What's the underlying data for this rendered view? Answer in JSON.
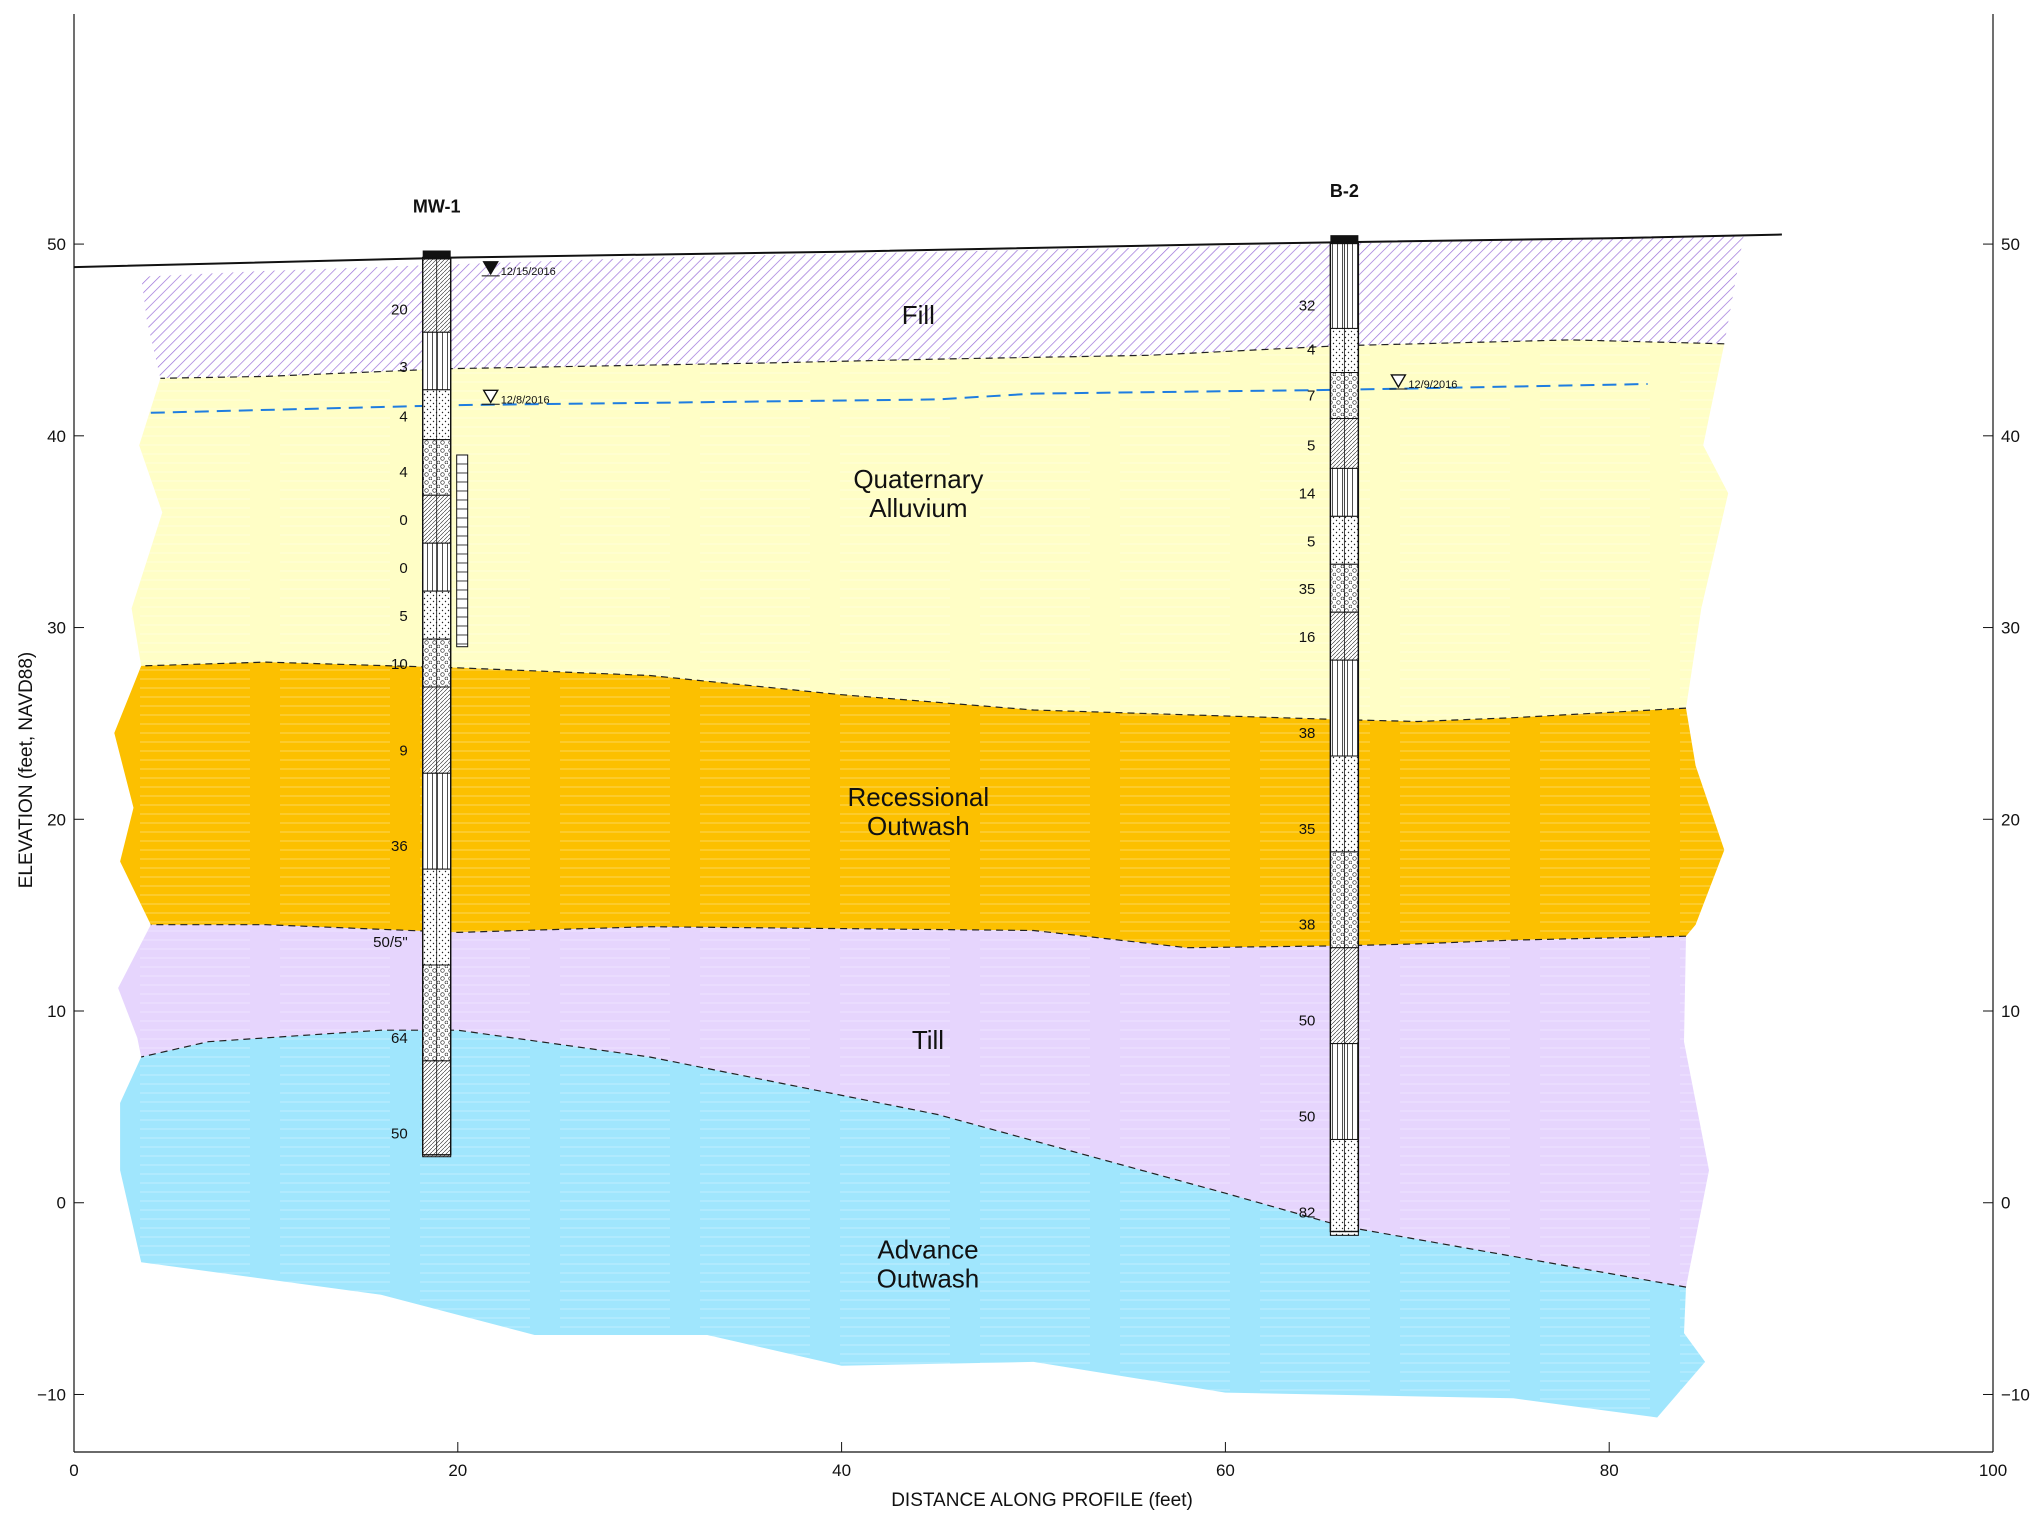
{
  "figure": {
    "x_axis_title": "DISTANCE ALONG PROFILE (feet)",
    "y_axis_title": "ELEVATION (feet, NAVD88)"
  },
  "chart_data": {
    "type": "geologic-cross-section",
    "xlabel": "DISTANCE ALONG PROFILE (feet)",
    "ylabel": "ELEVATION (feet, NAVD88)",
    "xlim": [
      0,
      100
    ],
    "ylim": [
      -13,
      62
    ],
    "xticks": [
      0,
      20,
      40,
      60,
      80,
      100
    ],
    "yticks": [
      -10,
      0,
      10,
      20,
      30,
      40,
      50
    ],
    "ground_surface": [
      [
        0,
        48.8
      ],
      [
        20,
        49.3
      ],
      [
        40,
        49.6
      ],
      [
        60,
        50.0
      ],
      [
        66,
        50.1
      ],
      [
        80,
        50.3
      ],
      [
        89,
        50.5
      ]
    ],
    "units": [
      {
        "name": "Fill",
        "label_lines": [
          "Fill"
        ],
        "label_at": [
          44,
          46.3
        ],
        "color": "#ffffff",
        "hatch_color": "#9a70d8",
        "top": [
          [
            3.5,
            48.3
          ],
          [
            10,
            48.6
          ],
          [
            30,
            49.3
          ],
          [
            60,
            49.9
          ],
          [
            80,
            50.3
          ],
          [
            87,
            50.4
          ]
        ],
        "bottom": [
          [
            86,
            44.8
          ],
          [
            78,
            45.0
          ],
          [
            70,
            44.8
          ],
          [
            66,
            44.7
          ],
          [
            56,
            44.2
          ],
          [
            45,
            44.0
          ],
          [
            36,
            43.8
          ],
          [
            25,
            43.6
          ],
          [
            19.5,
            43.5
          ],
          [
            10,
            43.1
          ],
          [
            4.5,
            43.0
          ]
        ],
        "left_edge": [
          [
            3.5,
            48.3
          ],
          [
            3.8,
            46.0
          ],
          [
            4.5,
            43.0
          ]
        ],
        "right_edge": [
          [
            87,
            50.4
          ],
          [
            86,
            44.8
          ]
        ]
      },
      {
        "name": "Quaternary Alluvium",
        "label_lines": [
          "Quaternary",
          "Alluvium"
        ],
        "label_at": [
          44,
          37.0
        ],
        "color": "#fffec6",
        "top": [
          [
            4.5,
            43.0
          ],
          [
            10,
            43.1
          ],
          [
            19.5,
            43.5
          ],
          [
            25,
            43.6
          ],
          [
            36,
            43.8
          ],
          [
            45,
            44.0
          ],
          [
            56,
            44.2
          ],
          [
            66,
            44.7
          ],
          [
            70,
            44.8
          ],
          [
            78,
            45.0
          ],
          [
            86,
            44.8
          ]
        ],
        "bottom": [
          [
            84,
            25.8
          ],
          [
            75,
            25.3
          ],
          [
            70,
            25.1
          ],
          [
            66,
            25.2
          ],
          [
            50,
            25.7
          ],
          [
            40,
            26.5
          ],
          [
            30,
            27.5
          ],
          [
            20,
            27.9
          ],
          [
            10,
            28.2
          ],
          [
            3.5,
            28.0
          ]
        ],
        "left_edge": [
          [
            4.5,
            43.0
          ],
          [
            3.4,
            39.5
          ],
          [
            4.6,
            36.0
          ],
          [
            3.0,
            31.0
          ],
          [
            3.5,
            28.0
          ]
        ],
        "right_edge": [
          [
            86,
            44.8
          ],
          [
            84.9,
            39.5
          ],
          [
            86.2,
            37.0
          ],
          [
            84.8,
            31.0
          ],
          [
            84,
            25.8
          ]
        ]
      },
      {
        "name": "Recessional Outwash",
        "label_lines": [
          "Recessional",
          "Outwash"
        ],
        "label_at": [
          44,
          20.4
        ],
        "color": "#fcc000",
        "top": [
          [
            3.5,
            28.0
          ],
          [
            10,
            28.2
          ],
          [
            20,
            27.9
          ],
          [
            30,
            27.5
          ],
          [
            40,
            26.5
          ],
          [
            50,
            25.7
          ],
          [
            66,
            25.2
          ],
          [
            70,
            25.1
          ],
          [
            75,
            25.3
          ],
          [
            84,
            25.8
          ]
        ],
        "bottom": [
          [
            84,
            13.9
          ],
          [
            75,
            13.7
          ],
          [
            70,
            13.5
          ],
          [
            66,
            13.4
          ],
          [
            58,
            13.3
          ],
          [
            50,
            14.2
          ],
          [
            30,
            14.4
          ],
          [
            20,
            14.1
          ],
          [
            10,
            14.5
          ],
          [
            4,
            14.5
          ]
        ],
        "left_edge": [
          [
            3.5,
            28.0
          ],
          [
            2.1,
            24.5
          ],
          [
            3.1,
            20.6
          ],
          [
            2.4,
            17.8
          ],
          [
            4,
            14.5
          ]
        ],
        "right_edge": [
          [
            84,
            25.8
          ],
          [
            84.5,
            22.8
          ],
          [
            86,
            18.4
          ],
          [
            84.5,
            14.5
          ],
          [
            84,
            13.9
          ]
        ]
      },
      {
        "name": "Till",
        "label_lines": [
          "Till"
        ],
        "label_at": [
          44.5,
          8.5
        ],
        "color": "#e6d5fd",
        "top": [
          [
            4,
            14.5
          ],
          [
            10,
            14.5
          ],
          [
            20,
            14.1
          ],
          [
            30,
            14.4
          ],
          [
            50,
            14.2
          ],
          [
            58,
            13.3
          ],
          [
            66,
            13.4
          ],
          [
            70,
            13.5
          ],
          [
            75,
            13.7
          ],
          [
            84,
            13.9
          ]
        ],
        "bottom": [
          [
            84,
            -4.4
          ],
          [
            75,
            -2.8
          ],
          [
            66,
            -1.2
          ],
          [
            60,
            0.5
          ],
          [
            45,
            4.6
          ],
          [
            30,
            7.6
          ],
          [
            20,
            9.0
          ],
          [
            16,
            9.0
          ],
          [
            7,
            8.4
          ],
          [
            3.5,
            7.6
          ]
        ],
        "left_edge": [
          [
            4,
            14.5
          ],
          [
            2.3,
            11.2
          ],
          [
            3.3,
            8.6
          ],
          [
            3.5,
            7.6
          ]
        ],
        "right_edge": [
          [
            84,
            13.9
          ],
          [
            83.9,
            8.4
          ],
          [
            85.2,
            1.7
          ],
          [
            84,
            -4.4
          ]
        ]
      },
      {
        "name": "Advance Outwash",
        "label_lines": [
          "Advance",
          "Outwash"
        ],
        "label_at": [
          44.5,
          -3.2
        ],
        "color": "#a0e6fd",
        "top": [
          [
            3.5,
            7.6
          ],
          [
            7,
            8.4
          ],
          [
            16,
            9.0
          ],
          [
            20,
            9.0
          ],
          [
            30,
            7.6
          ],
          [
            45,
            4.6
          ],
          [
            60,
            0.5
          ],
          [
            66,
            -1.2
          ],
          [
            75,
            -2.8
          ],
          [
            84,
            -4.4
          ]
        ],
        "bottom": [
          [
            82.5,
            -11.2
          ],
          [
            75,
            -10.2
          ],
          [
            60,
            -9.9
          ],
          [
            50,
            -8.3
          ],
          [
            40,
            -8.5
          ],
          [
            33,
            -6.9
          ],
          [
            24,
            -6.9
          ],
          [
            16,
            -4.8
          ],
          [
            3.5,
            -3.1
          ]
        ],
        "left_edge": [
          [
            3.5,
            7.6
          ],
          [
            2.4,
            5.2
          ],
          [
            2.4,
            1.7
          ],
          [
            3.5,
            -3.1
          ]
        ],
        "right_edge": [
          [
            84,
            -4.4
          ],
          [
            83.9,
            -6.8
          ],
          [
            85,
            -8.3
          ],
          [
            82.5,
            -11.2
          ]
        ]
      }
    ],
    "water_table": [
      [
        4,
        41.2
      ],
      [
        20,
        41.6
      ],
      [
        45,
        41.9
      ],
      [
        50,
        42.2
      ],
      [
        66,
        42.4
      ],
      [
        82,
        42.7
      ]
    ],
    "borings": [
      {
        "id": "MW-1",
        "x": 18.9,
        "top": 49.3,
        "bottom": 2.5,
        "blow_counts": [
          {
            "label": "20",
            "elev": 46.6
          },
          {
            "label": "3",
            "elev": 43.6
          },
          {
            "label": "4",
            "elev": 41.0
          },
          {
            "label": "4",
            "elev": 38.1
          },
          {
            "label": "0",
            "elev": 35.6
          },
          {
            "label": "0",
            "elev": 33.1
          },
          {
            "label": "5",
            "elev": 30.6
          },
          {
            "label": "10",
            "elev": 28.1
          },
          {
            "label": "9",
            "elev": 23.6
          },
          {
            "label": "36",
            "elev": 18.6
          },
          {
            "label": "50/5\"",
            "elev": 13.6
          },
          {
            "label": "64",
            "elev": 8.6
          },
          {
            "label": "50",
            "elev": 3.6
          }
        ],
        "water_levels": [
          {
            "date": "12/15/2016",
            "elev": 48.5,
            "symbol": "filled"
          },
          {
            "date": "12/8/2016",
            "elev": 41.8,
            "symbol": "open"
          }
        ],
        "screen": {
          "top": 39.0,
          "bottom": 29.0
        }
      },
      {
        "id": "B-2",
        "x": 66.2,
        "top": 50.1,
        "bottom": -1.5,
        "blow_counts": [
          {
            "label": "32",
            "elev": 46.8
          },
          {
            "label": "4",
            "elev": 44.5
          },
          {
            "label": "7",
            "elev": 42.1
          },
          {
            "label": "5",
            "elev": 39.5
          },
          {
            "label": "14",
            "elev": 37.0
          },
          {
            "label": "5",
            "elev": 34.5
          },
          {
            "label": "35",
            "elev": 32.0
          },
          {
            "label": "16",
            "elev": 29.5
          },
          {
            "label": "38",
            "elev": 24.5
          },
          {
            "label": "35",
            "elev": 19.5
          },
          {
            "label": "38",
            "elev": 14.5
          },
          {
            "label": "50",
            "elev": 9.5
          },
          {
            "label": "50",
            "elev": 4.5
          },
          {
            "label": "82",
            "elev": -0.5
          }
        ],
        "water_levels": [
          {
            "date": "12/9/2016",
            "elev": 42.6,
            "symbol": "open"
          }
        ]
      }
    ]
  }
}
